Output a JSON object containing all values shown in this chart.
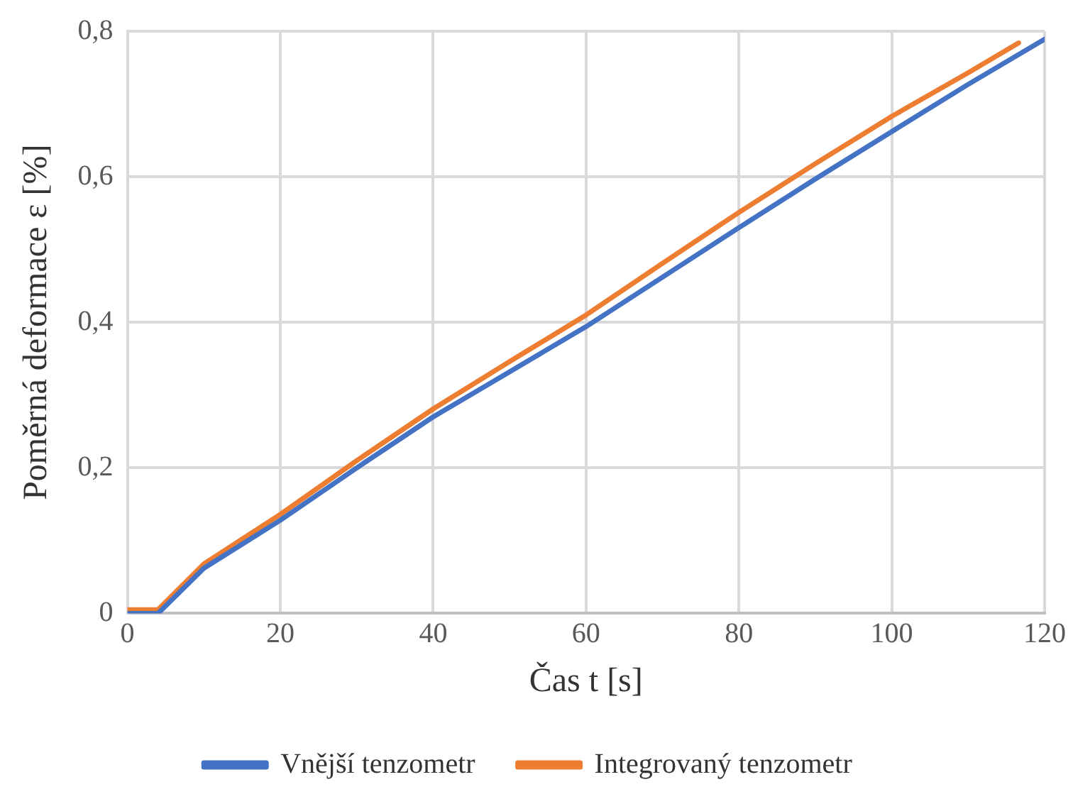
{
  "chart_data": {
    "type": "line",
    "xlabel": "Čas t [s]",
    "ylabel": "Poměrná deformace ε [%]",
    "xlim": [
      0,
      120
    ],
    "xticks": [
      0,
      20,
      40,
      60,
      80,
      100,
      120
    ],
    "ylim": [
      0,
      0.8
    ],
    "yticks": [
      0,
      {
        "value": 0.2,
        "label": "0,2"
      },
      {
        "value": 0.4,
        "label": "0,4"
      },
      {
        "value": 0.6,
        "label": "0,6"
      },
      {
        "value": 0.8,
        "label": "0,8"
      }
    ],
    "grid": true,
    "legend": "bottom",
    "marker": "none",
    "line_style": "solid",
    "series": [
      {
        "name": "Vnější tenzometr",
        "color": "#4472c4",
        "x": [
          0,
          4,
          10,
          20,
          30,
          40,
          50,
          60,
          70,
          80,
          90,
          100,
          110,
          120
        ],
        "values": [
          0,
          0,
          0.062,
          0.128,
          0.2,
          0.27,
          0.332,
          0.394,
          0.462,
          0.53,
          0.597,
          0.662,
          0.727,
          0.789
        ]
      },
      {
        "name": "Integrovaný tenzometr",
        "color": "#ed7d31",
        "x": [
          0,
          4,
          10,
          20,
          30,
          40,
          50,
          60,
          70,
          80,
          90,
          100,
          110,
          116.6
        ],
        "values": [
          0.005,
          0.005,
          0.068,
          0.136,
          0.21,
          0.281,
          0.346,
          0.41,
          0.481,
          0.551,
          0.618,
          0.683,
          0.743,
          0.784
        ]
      }
    ]
  }
}
